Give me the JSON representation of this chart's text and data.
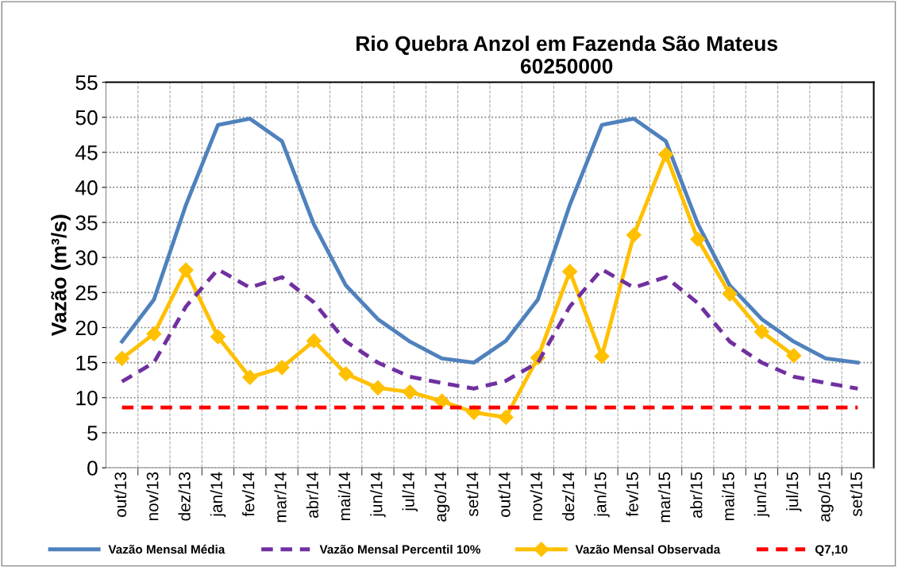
{
  "chart_data": {
    "type": "line",
    "title": "Rio Quebra Anzol em Fazenda São Mateus\n60250000",
    "ylabel": "Vazão (m³/s)",
    "categories": [
      "out/13",
      "nov/13",
      "dez/13",
      "jan/14",
      "fev/14",
      "mar/14",
      "abr/14",
      "mai/14",
      "jun/14",
      "jul/14",
      "ago/14",
      "set/14",
      "out/14",
      "nov/14",
      "dez/14",
      "jan/15",
      "fev/15",
      "mar/15",
      "abr/15",
      "mai/15",
      "jun/15",
      "jul/15",
      "ago/15",
      "set/15"
    ],
    "series": [
      {
        "name": "Vazão Mensal Média",
        "color": "#4f81bd",
        "line_style": "solid",
        "marker": "none",
        "values": [
          18,
          24,
          37.5,
          48.9,
          49.8,
          46.6,
          34.7,
          26,
          21.2,
          18,
          15.6,
          15,
          18.1,
          24,
          37.5,
          48.9,
          49.8,
          46.6,
          34.8,
          26,
          21.2,
          18,
          15.6,
          15
        ]
      },
      {
        "name": "Vazão Mensal Percentil 10%",
        "color": "#7030a0",
        "line_style": "dashed",
        "marker": "none",
        "values": [
          12.3,
          15,
          23,
          28.3,
          25.7,
          27.2,
          23.6,
          18,
          15,
          13,
          12.1,
          11.3,
          12.4,
          15,
          23,
          28.3,
          25.7,
          27.2,
          23.5,
          18,
          15,
          13,
          12.1,
          11.3
        ]
      },
      {
        "name": "Vazão Mensal Observada",
        "color": "#ffc000",
        "line_style": "solid",
        "marker": "diamond",
        "values": [
          15.6,
          19.1,
          28.2,
          18.7,
          12.9,
          14.3,
          18.1,
          13.4,
          11.4,
          10.8,
          9.5,
          7.9,
          7.2,
          15.7,
          28,
          15.9,
          33.2,
          44.7,
          32.6,
          24.8,
          19.4,
          16,
          null,
          null
        ]
      },
      {
        "name": "Q7,10",
        "color": "#ff0000",
        "line_style": "dashed",
        "marker": "none",
        "values": [
          8.6,
          8.6,
          8.6,
          8.6,
          8.6,
          8.6,
          8.6,
          8.6,
          8.6,
          8.6,
          8.6,
          8.6,
          8.6,
          8.6,
          8.6,
          8.6,
          8.6,
          8.6,
          8.6,
          8.6,
          8.6,
          8.6,
          8.6,
          8.6
        ]
      }
    ],
    "ylim": [
      0,
      55
    ],
    "yticks": [
      0,
      5,
      10,
      15,
      20,
      25,
      30,
      35,
      40,
      45,
      50,
      55
    ],
    "grid": true,
    "legend": "bottom"
  }
}
